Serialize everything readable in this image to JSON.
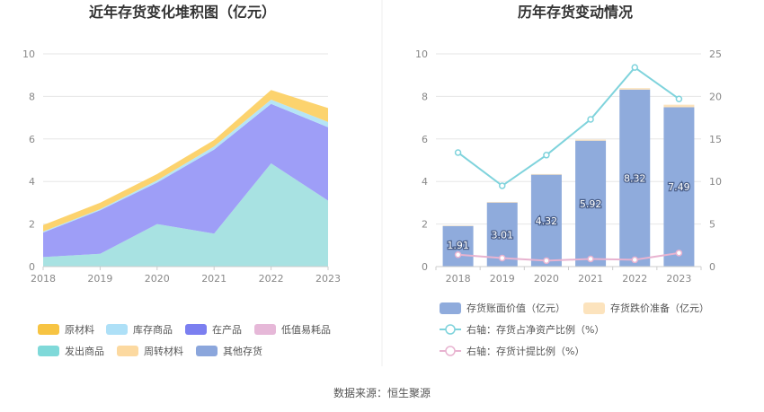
{
  "source_text": "数据来源：恒生聚源",
  "chart_data": [
    {
      "type": "area",
      "title": "近年存货变化堆积图（亿元）",
      "x": [
        "2018",
        "2019",
        "2020",
        "2021",
        "2022",
        "2023"
      ],
      "ylim": [
        0,
        10
      ],
      "yticks": [
        0,
        2,
        4,
        6,
        8,
        10
      ],
      "grid": true,
      "legend_position": "bottom",
      "series": [
        {
          "name": "发出商品",
          "color": "#a8e2e2",
          "values": [
            0.45,
            0.6,
            2.0,
            1.55,
            4.85,
            3.1
          ]
        },
        {
          "name": "在产品",
          "color": "#9e9ef7",
          "values": [
            1.15,
            2.05,
            1.95,
            3.95,
            2.8,
            3.45
          ]
        },
        {
          "name": "库存商品",
          "color": "#b5e4f6",
          "values": [
            0.05,
            0.05,
            0.1,
            0.15,
            0.2,
            0.25
          ]
        },
        {
          "name": "原材料",
          "color": "#fcd36e",
          "values": [
            0.3,
            0.3,
            0.3,
            0.3,
            0.45,
            0.65
          ]
        },
        {
          "name": "低值易耗品",
          "color": "#e6b8d8",
          "values": [
            0,
            0,
            0,
            0,
            0,
            0
          ]
        },
        {
          "name": "周转材料",
          "color": "#fde0a6",
          "values": [
            0,
            0,
            0,
            0,
            0,
            0
          ]
        },
        {
          "name": "其他存货",
          "color": "#8ba6dc",
          "values": [
            0,
            0,
            0,
            0,
            0,
            0
          ]
        }
      ],
      "legend": [
        {
          "name": "原材料",
          "color": "#f7c443"
        },
        {
          "name": "库存商品",
          "color": "#aee0f7"
        },
        {
          "name": "在产品",
          "color": "#7b7ff0"
        },
        {
          "name": "低值易耗品",
          "color": "#e6b8d8"
        },
        {
          "name": "发出商品",
          "color": "#7fd9d9"
        },
        {
          "name": "周转材料",
          "color": "#fcd9a0"
        },
        {
          "name": "其他存货",
          "color": "#8ba6dc"
        }
      ]
    },
    {
      "type": "bar",
      "title": "历年存货变动情况",
      "categories": [
        "2018",
        "2019",
        "2020",
        "2021",
        "2022",
        "2023"
      ],
      "ylim": [
        0,
        10
      ],
      "yticks": [
        0,
        2,
        4,
        6,
        8,
        10
      ],
      "y2lim": [
        0,
        25
      ],
      "y2ticks": [
        0,
        5,
        10,
        15,
        20,
        25
      ],
      "grid": true,
      "legend_position": "bottom",
      "series": [
        {
          "name": "存货账面价值（亿元）",
          "kind": "bar",
          "axis": "left",
          "color": "#8fabdc",
          "values": [
            1.91,
            3.01,
            4.32,
            5.92,
            8.32,
            7.49
          ],
          "labels": [
            "1.91",
            "3.01",
            "4.32",
            "5.92",
            "8.32",
            "7.49"
          ]
        },
        {
          "name": "存货跌价准备（亿元）",
          "kind": "bar-stack",
          "axis": "left",
          "color": "#fce3bd",
          "values": [
            0.02,
            0.03,
            0.03,
            0.05,
            0.07,
            0.12
          ]
        },
        {
          "name": "右轴：存货占净资产比例（%）",
          "kind": "line",
          "axis": "right",
          "color": "#7fd3dc",
          "values": [
            13.4,
            9.5,
            13.1,
            17.3,
            23.4,
            19.7
          ]
        },
        {
          "name": "右轴：存货计提比例（%）",
          "kind": "line",
          "axis": "right",
          "color": "#e8b3d0",
          "values": [
            1.4,
            1.0,
            0.7,
            0.9,
            0.8,
            1.6
          ]
        }
      ]
    }
  ]
}
